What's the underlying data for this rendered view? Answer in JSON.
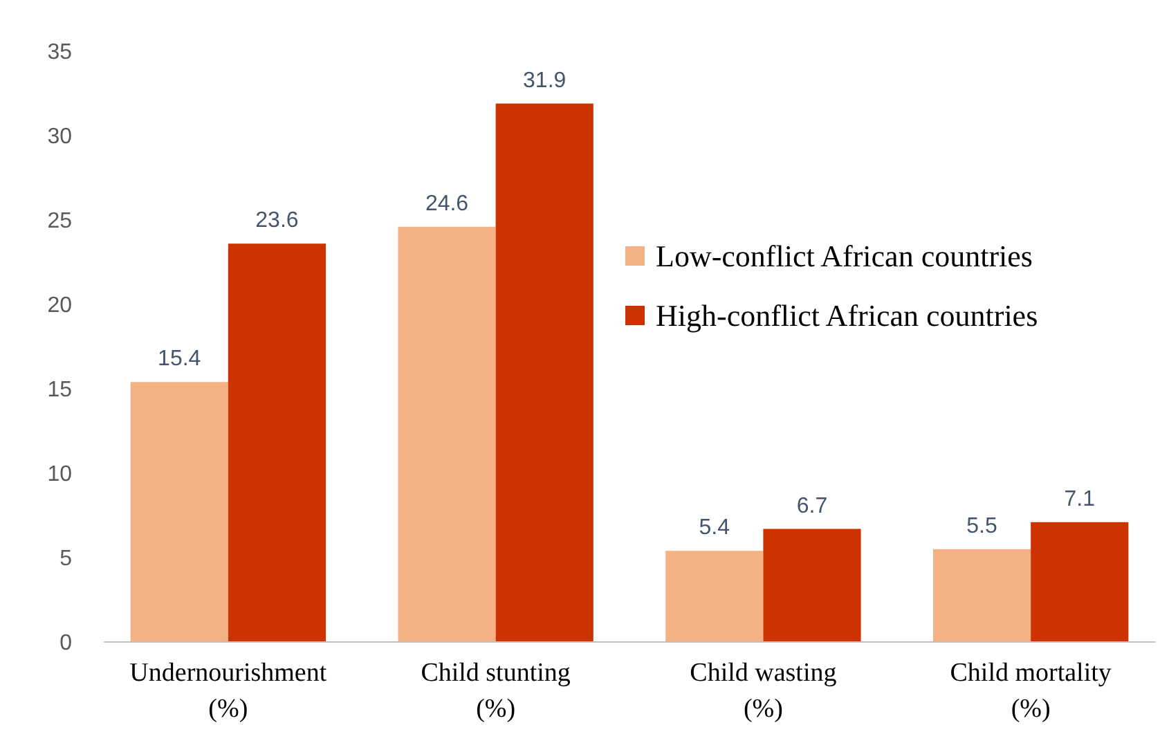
{
  "chart_data": {
    "type": "bar",
    "categories": [
      "Undernourishment (%)",
      "Child stunting (%)",
      "Child wasting (%)",
      "Child mortality (%)"
    ],
    "series": [
      {
        "name": "Low-conflict African countries",
        "color": "#f4b183",
        "values": [
          15.4,
          24.6,
          5.4,
          5.5
        ]
      },
      {
        "name": "High-conflict African countries",
        "color": "#cc3300",
        "values": [
          23.6,
          31.9,
          6.7,
          7.1
        ]
      }
    ],
    "ylim": [
      0,
      35
    ],
    "yticks": [
      0,
      5,
      10,
      15,
      20,
      25,
      30,
      35
    ],
    "grid": false,
    "legend": "right",
    "data_labels": true
  }
}
